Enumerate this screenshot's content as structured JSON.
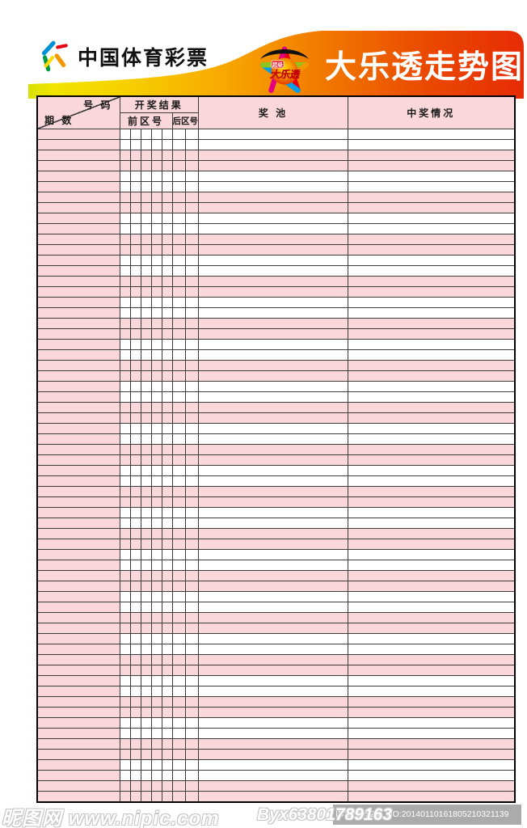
{
  "header": {
    "brand_name": "中国体育彩票",
    "title": "大乐透走势图",
    "star_badge": "超级",
    "star_label": "大乐透"
  },
  "table": {
    "corner": {
      "top_right": "号 码",
      "bottom_left": "期 数"
    },
    "groups": {
      "results": "开奖结果",
      "front": "前区号",
      "back": "后区号"
    },
    "columns": {
      "pool": "奖 池",
      "winning": "中奖情况"
    },
    "front_cols": 5,
    "back_cols": 2,
    "row_count": 64
  },
  "footer": {
    "watermark": "昵图网 www.nipic.com",
    "outline_text": "Byx63801789163",
    "bar_text": "ID:12395201 NO:20140110161805210321139"
  },
  "colors": {
    "pink": "#f9d7da",
    "grid": "#3b3b3b",
    "banner_yellow": "#f2e400",
    "banner_orange": "#f8ab00",
    "banner_red": "#e62c05",
    "bar_gray": "#ababab"
  }
}
